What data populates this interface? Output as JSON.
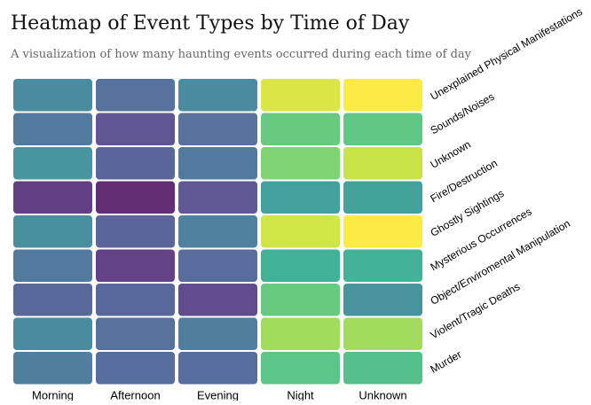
{
  "chart_data": {
    "type": "heatmap",
    "title": "Heatmap of Event Types by Time of Day",
    "subtitle": "A visualization of how many haunting events occurred during each time of day",
    "columns": [
      "Morning",
      "Afternoon",
      "Evening",
      "Night",
      "Unknown"
    ],
    "rows": [
      "Unexplained Physical Manifestations",
      "Sounds/Noises",
      "Unknown",
      "Fire/Destruction",
      "Ghostly Sightings",
      "Mysterious Occurrences",
      "Object/Enviromental Manipulation",
      "Violent/Tragic Deaths",
      "Murder"
    ],
    "values": [
      [
        0.5,
        0.35,
        0.5,
        0.96,
        1.0
      ],
      [
        0.4,
        0.2,
        0.35,
        0.83,
        0.82
      ],
      [
        0.55,
        0.28,
        0.4,
        0.86,
        0.94
      ],
      [
        0.1,
        0.03,
        0.22,
        0.63,
        0.64
      ],
      [
        0.52,
        0.28,
        0.44,
        0.95,
        1.0
      ],
      [
        0.4,
        0.12,
        0.32,
        0.72,
        0.73
      ],
      [
        0.3,
        0.3,
        0.16,
        0.83,
        0.54
      ],
      [
        0.5,
        0.34,
        0.42,
        0.9,
        0.9
      ],
      [
        0.42,
        0.33,
        0.33,
        0.81,
        0.79
      ]
    ],
    "color_scale": "viridis",
    "cell_opacity": 0.85,
    "legend": "none",
    "row_label_placement": "right, rotated",
    "column_label_placement": "bottom"
  }
}
